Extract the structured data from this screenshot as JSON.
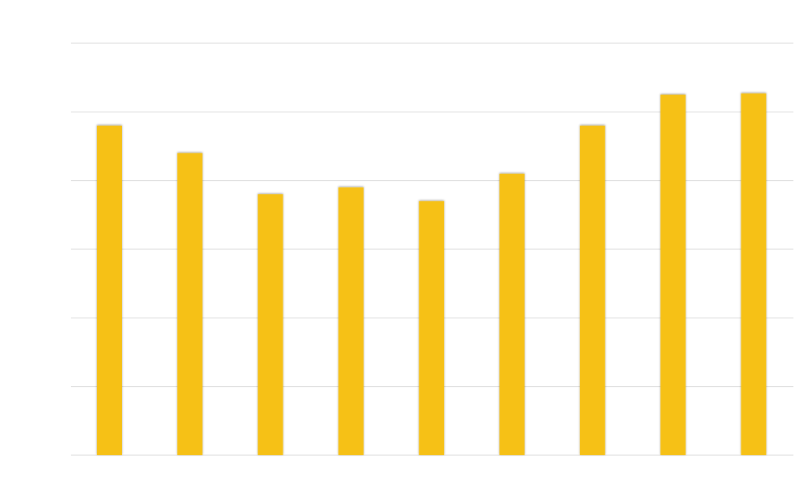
{
  "chart_data": {
    "type": "bar",
    "categories": [
      "",
      "",
      "",
      "",
      "",
      "",
      "",
      "",
      ""
    ],
    "values": [
      4.8,
      4.4,
      3.8,
      3.9,
      3.7,
      4.1,
      4.8,
      5.25,
      5.27
    ],
    "title": "",
    "xlabel": "",
    "ylabel": "",
    "ylim": [
      0,
      6
    ],
    "grid": true,
    "legend": "none",
    "colors": {
      "bar": "#F6C117",
      "grid": "#d9d9d9",
      "background": "#ffffff"
    }
  }
}
